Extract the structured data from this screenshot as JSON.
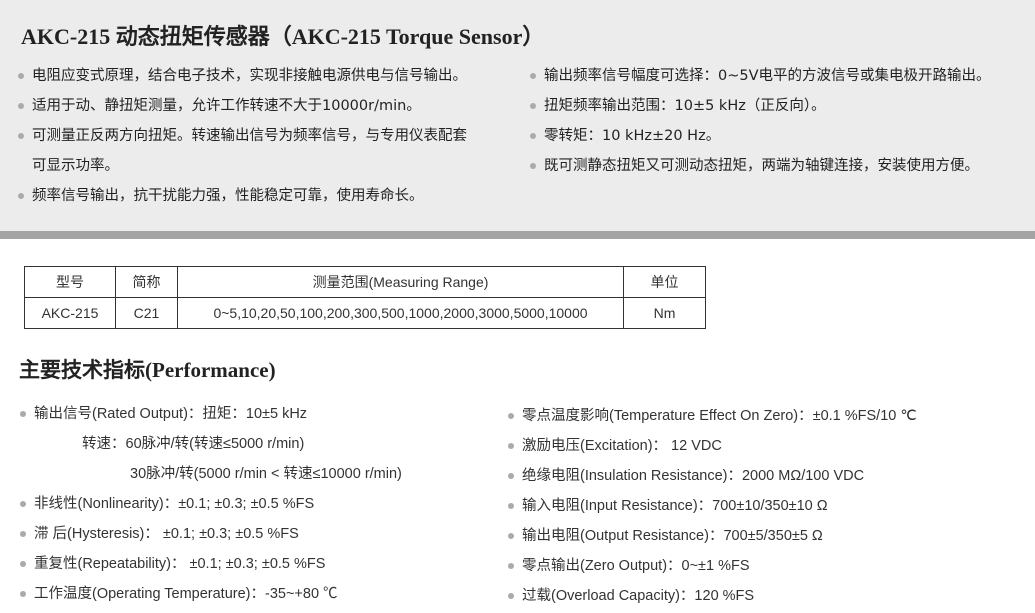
{
  "title": "AKC-215  动态扭矩传感器（AKC-215 Torque Sensor）",
  "features_left": [
    "电阻应变式原理，结合电子技术，实现非接触电源供电与信号输出。",
    "适用于动、静扭矩测量，允许工作转速不大于10000r/min。",
    "可测量正反两方向扭矩。转速输出信号为频率信号，与专用仪表配套",
    "可显示功率。",
    "频率信号输出，抗干扰能力强，性能稳定可靠，使用寿命长。"
  ],
  "features_right": [
    "输出频率信号幅度可选择：0~5V电平的方波信号或集电极开路输出。",
    "扭矩频率输出范围：10±5 kHz（正反向）。",
    "零转矩：10 kHz±20 Hz。",
    "既可测静态扭矩又可测动态扭矩，两端为轴键连接，安装使用方便。"
  ],
  "table": {
    "headers": [
      "型号",
      "简称",
      "测量范围(Measuring Range)",
      "单位"
    ],
    "rows": [
      [
        "AKC-215",
        "C21",
        "0~5,10,20,50,100,200,300,500,1000,2000,3000,5000,10000",
        "Nm"
      ]
    ]
  },
  "performance_title": "主要技术指标(Performance)",
  "specs_left": [
    "输出信号(Rated Output)：扭矩：10±5 kHz",
    "转速：60脉冲/转(转速≤5000 r/min)",
    "30脉冲/转(5000 r/min < 转速≤10000 r/min)",
    "非线性(Nonlinearity)：±0.1; ±0.3; ±0.5 %FS",
    "滞  后(Hysteresis)：  ±0.1; ±0.3; ±0.5 %FS",
    "重复性(Repeatability)：  ±0.1; ±0.3; ±0.5 %FS",
    "工作温度(Operating Temperature)：-35~+80 ℃"
  ],
  "specs_right": [
    "零点温度影响(Temperature Effect On Zero)：±0.1 %FS/10 ℃",
    "激励电压(Excitation)： 12 VDC",
    "绝缘电阻(Insulation Resistance)：2000 MΩ/100 VDC",
    "输入电阻(Input Resistance)：700±10/350±10 Ω",
    "输出电阻(Output Resistance)：700±5/350±5 Ω",
    "零点输出(Zero Output)：0~±1 %FS",
    "过载(Overload Capacity)：120 %FS"
  ]
}
